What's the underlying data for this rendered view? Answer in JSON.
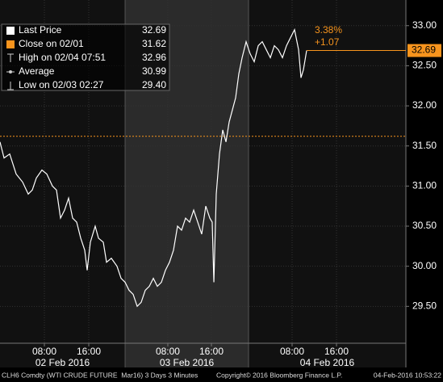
{
  "chart_data": {
    "type": "line",
    "legend": [
      {
        "label": "Last Price",
        "value": "32.69"
      },
      {
        "label": "Close on 02/01",
        "value": "31.62"
      },
      {
        "label": "High on 02/04 07:51",
        "value": "32.96"
      },
      {
        "label": "Average",
        "value": "30.99"
      },
      {
        "label": "Low on 02/03 02:27",
        "value": "29.40"
      }
    ],
    "last_price": 32.69,
    "close": 31.62,
    "annotations": [
      "3.38%",
      "+1.07"
    ],
    "series": [
      {
        "name": "Last Price",
        "color": "#ffffff",
        "x": [
          0,
          0.73,
          1.75,
          2.91,
          4.07,
          5.09,
          5.82,
          6.55,
          7.56,
          8.44,
          9.45,
          10.18,
          10.91,
          11.64,
          12.36,
          13.09,
          13.82,
          14.55,
          15.27,
          15.71,
          16.29,
          17.16,
          17.75,
          18.62,
          19.2,
          20.07,
          21.09,
          21.82,
          22.55,
          23.27,
          24,
          24.73,
          25.45,
          26.18,
          26.91,
          27.64,
          28.36,
          29.09,
          29.82,
          30.55,
          31.27,
          32,
          32.73,
          33.45,
          34.18,
          34.91,
          35.64,
          36.36,
          37.09,
          37.82,
          38.25,
          38.55,
          38.98,
          39.56,
          40.15,
          40.73,
          41.31,
          41.89,
          42.47,
          43.05,
          43.64,
          44.36,
          45.09,
          45.82,
          46.55,
          47.27,
          48,
          48.73,
          49.45,
          50.18,
          50.91,
          51.64,
          52.36,
          53.09,
          53.82,
          54.25,
          54.69,
          55.27
        ],
        "values": [
          31.55,
          31.35,
          31.4,
          31.15,
          31.05,
          30.9,
          30.95,
          31.1,
          31.2,
          31.15,
          31.0,
          30.95,
          30.6,
          30.7,
          30.85,
          30.6,
          30.55,
          30.35,
          30.2,
          29.95,
          30.3,
          30.5,
          30.35,
          30.3,
          30.05,
          30.1,
          30.0,
          29.85,
          29.8,
          29.7,
          29.65,
          29.5,
          29.55,
          29.7,
          29.75,
          29.85,
          29.75,
          29.8,
          29.95,
          30.05,
          30.2,
          30.5,
          30.45,
          30.6,
          30.55,
          30.7,
          30.55,
          30.4,
          30.75,
          30.6,
          30.55,
          29.8,
          30.9,
          31.4,
          31.7,
          31.55,
          31.8,
          31.95,
          32.1,
          32.4,
          32.6,
          32.8,
          32.65,
          32.55,
          32.75,
          32.8,
          32.7,
          32.6,
          32.75,
          32.7,
          32.6,
          32.75,
          32.85,
          32.95,
          32.7,
          32.35,
          32.45,
          32.69
        ]
      }
    ],
    "xlim": [
      0,
      73.16
    ],
    "xticks": [
      {
        "value": 8,
        "label": "08:00"
      },
      {
        "value": 16,
        "label": "16:00"
      },
      {
        "value": 30.25,
        "label": "08:00"
      },
      {
        "value": 38.11,
        "label": "16:00"
      },
      {
        "value": 52.65,
        "label": "08:00"
      },
      {
        "value": 60.65,
        "label": "16:00"
      }
    ],
    "day_bands": [
      {
        "label": "02 Feb 2016",
        "start": 0,
        "end": 22.55
      },
      {
        "label": "03 Feb 2016",
        "start": 22.55,
        "end": 44.8
      },
      {
        "label": "04 Feb 2016",
        "start": 44.8,
        "end": 73.16
      }
    ],
    "ylim": [
      29.04,
      33.32
    ],
    "yticks": [
      {
        "value": 29.5,
        "label": "29.50"
      },
      {
        "value": 30,
        "label": "30.00"
      },
      {
        "value": 30.5,
        "label": "30.50"
      },
      {
        "value": 31,
        "label": "31.00"
      },
      {
        "value": 31.5,
        "label": "31.50"
      },
      {
        "value": 32,
        "label": "32.00"
      },
      {
        "value": 32.5,
        "label": "32.50"
      },
      {
        "value": 33,
        "label": "33.00"
      }
    ],
    "grid": true,
    "accent_color": "#f7941d",
    "footer": [
      "CLH6 Comdty (WTI CRUDE FUTURE  Mar16) 3 Days 3 Minutes",
      "Copyright© 2016 Bloomberg Finance L.P.",
      "04-Feb-2016 10:53:22"
    ]
  }
}
